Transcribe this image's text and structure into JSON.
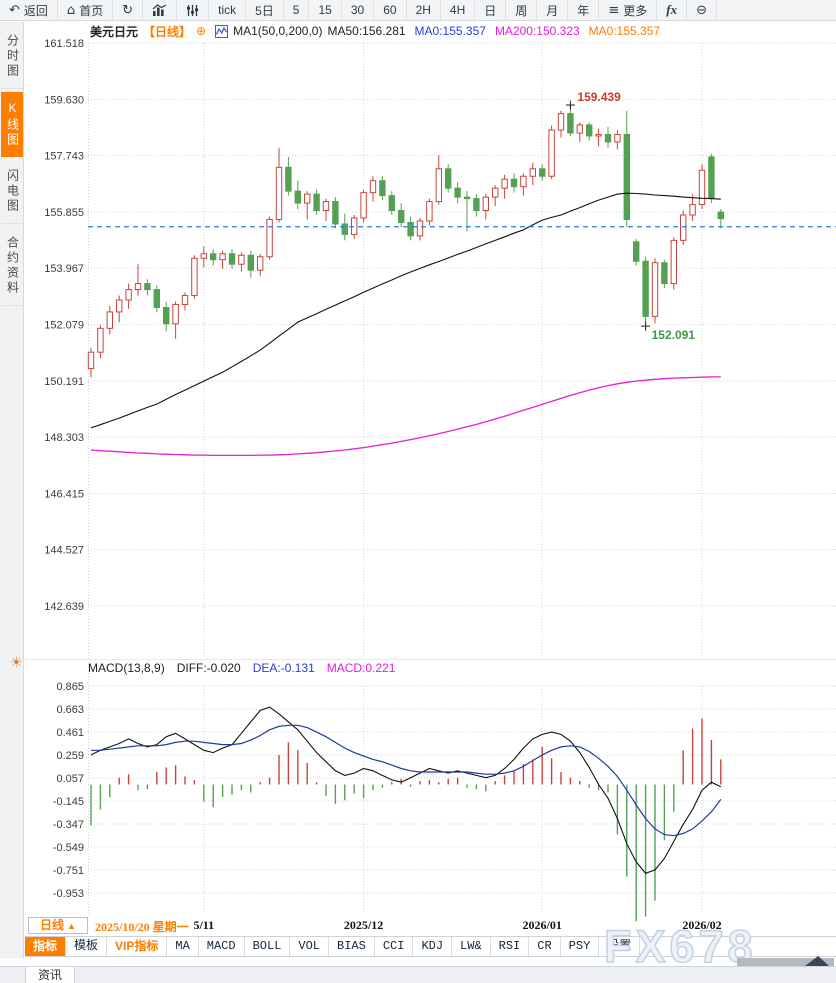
{
  "toolbar": {
    "items": [
      {
        "name": "back-button",
        "label": "返回",
        "icon": "back"
      },
      {
        "name": "home-button",
        "label": "首页",
        "icon": "home"
      },
      {
        "name": "refresh-button",
        "icon": "refresh"
      },
      {
        "name": "chart-style-button",
        "icon": "bar-chart"
      },
      {
        "name": "indicator-params-button",
        "icon": "sliders"
      },
      {
        "name": "period-tick",
        "label": "tick"
      },
      {
        "name": "period-5d",
        "label": "5日"
      },
      {
        "name": "period-5m",
        "label": "5"
      },
      {
        "name": "period-15m",
        "label": "15"
      },
      {
        "name": "period-30m",
        "label": "30"
      },
      {
        "name": "period-60m",
        "label": "60"
      },
      {
        "name": "period-2h",
        "label": "2H"
      },
      {
        "name": "period-4h",
        "label": "4H"
      },
      {
        "name": "period-day",
        "label": "日"
      },
      {
        "name": "period-week",
        "label": "周"
      },
      {
        "name": "period-month",
        "label": "月"
      },
      {
        "name": "period-year",
        "label": "年"
      },
      {
        "name": "more-button",
        "label": "更多",
        "icon": "menu"
      },
      {
        "name": "formula-button",
        "icon": "fx"
      },
      {
        "name": "zoom-out-button",
        "icon": "zoom-out"
      }
    ]
  },
  "sidebar": {
    "tabs": [
      {
        "name": "tab-time-chart",
        "label": "分时图",
        "active": false
      },
      {
        "name": "tab-kline-chart",
        "label": "K线图",
        "active": true
      },
      {
        "name": "tab-lightning-chart",
        "label": "闪电图",
        "active": false
      },
      {
        "name": "tab-contract-info",
        "label": "合约资料",
        "active": false
      }
    ]
  },
  "chart_header": {
    "symbol": "美元日元",
    "period_tag": "【日线】",
    "add_icon": "⊕",
    "ma_params": "MA1(50,0,200,0)",
    "ma50": "MA50:156.281",
    "ma0_blue": "MA0:155.357",
    "ma200": "MA200:150.323",
    "ma0_orange": "MA0:155.357"
  },
  "macd_header": {
    "params": "MACD(13,8,9)",
    "diff": "DIFF:-0.020",
    "dea": "DEA:-0.131",
    "macd": "MACD:0.221"
  },
  "xaxis": {
    "period_label": "日线",
    "arrow": "▲",
    "date_label": "2025/10/20 星期一"
  },
  "indicator_bar": {
    "tabs": [
      {
        "name": "tab-indicators",
        "label": "指标",
        "style": "active"
      },
      {
        "name": "tab-templates",
        "label": "模板",
        "style": ""
      },
      {
        "name": "tab-vip-indicators",
        "label": "VIP指标",
        "style": "vip"
      },
      {
        "name": "btn-ma",
        "label": "MA",
        "style": ""
      },
      {
        "name": "btn-macd",
        "label": "MACD",
        "style": ""
      },
      {
        "name": "btn-boll",
        "label": "BOLL",
        "style": ""
      },
      {
        "name": "btn-vol",
        "label": "VOL",
        "style": ""
      },
      {
        "name": "btn-bias",
        "label": "BIAS",
        "style": ""
      },
      {
        "name": "btn-cci",
        "label": "CCI",
        "style": ""
      },
      {
        "name": "btn-kdj",
        "label": "KDJ",
        "style": ""
      },
      {
        "name": "btn-lw",
        "label": "LW&",
        "style": ""
      },
      {
        "name": "btn-rsi",
        "label": "RSI",
        "style": ""
      },
      {
        "name": "btn-cr",
        "label": "CR",
        "style": ""
      },
      {
        "name": "btn-psy",
        "label": "PSY",
        "style": ""
      },
      {
        "name": "btn-settings",
        "label": "设置",
        "style": ""
      }
    ]
  },
  "bottom": {
    "news_label": "资讯"
  },
  "watermark": {
    "text": "FX678"
  },
  "colors": {
    "up": "#c9443c",
    "down": "#54a154",
    "price_line": "#1f7ee8",
    "ma50": "#111111",
    "ma200": "#e41fd6",
    "diff_line": "#111111",
    "dea_line": "#223a9e",
    "accent": "#ff7e00",
    "blue_text": "#2b3cdd",
    "magenta_text": "#e619e6"
  },
  "chart_data": {
    "type": "candlestick",
    "symbol": "美元日元",
    "period": "日线",
    "y_ticks": [
      "161.518",
      "159.630",
      "157.743",
      "155.855",
      "153.967",
      "152.079",
      "150.191",
      "148.303",
      "146.415",
      "144.527",
      "142.639"
    ],
    "current_price": 155.357,
    "x_ticks": [
      {
        "label": "5/11",
        "index": 12
      },
      {
        "label": "2025/12",
        "index": 29
      },
      {
        "label": "2026/01",
        "index": 48
      },
      {
        "label": "2026/02",
        "index": 65
      }
    ],
    "annotations": {
      "high": {
        "label": "159.439",
        "index": 51
      },
      "low": {
        "label": "152.091",
        "index": 59
      }
    },
    "candles": [
      [
        150.6,
        151.3,
        150.3,
        151.15
      ],
      [
        151.15,
        152.05,
        150.95,
        151.95
      ],
      [
        151.95,
        152.7,
        151.75,
        152.5
      ],
      [
        152.5,
        153.05,
        152.15,
        152.9
      ],
      [
        152.9,
        153.45,
        152.6,
        153.25
      ],
      [
        153.25,
        154.1,
        153.05,
        153.45
      ],
      [
        153.45,
        153.6,
        153.05,
        153.25
      ],
      [
        153.25,
        153.4,
        152.5,
        152.65
      ],
      [
        152.65,
        152.85,
        151.85,
        152.1
      ],
      [
        152.1,
        152.85,
        151.6,
        152.75
      ],
      [
        152.75,
        153.15,
        152.55,
        153.05
      ],
      [
        153.05,
        154.4,
        152.95,
        154.3
      ],
      [
        154.3,
        154.7,
        154.0,
        154.45
      ],
      [
        154.45,
        154.6,
        154.05,
        154.25
      ],
      [
        154.25,
        154.55,
        153.95,
        154.45
      ],
      [
        154.45,
        154.6,
        153.95,
        154.1
      ],
      [
        154.1,
        154.5,
        153.85,
        154.4
      ],
      [
        154.4,
        154.55,
        153.65,
        153.9
      ],
      [
        153.9,
        154.45,
        153.7,
        154.35
      ],
      [
        154.35,
        155.7,
        154.25,
        155.6
      ],
      [
        155.6,
        158.0,
        155.5,
        157.35
      ],
      [
        157.35,
        157.7,
        156.4,
        156.55
      ],
      [
        156.55,
        156.9,
        155.95,
        156.15
      ],
      [
        156.15,
        156.55,
        155.6,
        156.45
      ],
      [
        156.45,
        156.6,
        155.75,
        155.9
      ],
      [
        155.9,
        156.3,
        155.55,
        156.2
      ],
      [
        156.2,
        156.35,
        155.3,
        155.45
      ],
      [
        155.45,
        155.8,
        154.9,
        155.1
      ],
      [
        155.1,
        155.75,
        154.95,
        155.65
      ],
      [
        155.65,
        156.6,
        155.5,
        156.5
      ],
      [
        156.5,
        157.05,
        156.2,
        156.9
      ],
      [
        156.9,
        157.05,
        156.25,
        156.4
      ],
      [
        156.4,
        156.55,
        155.75,
        155.9
      ],
      [
        155.9,
        156.15,
        155.35,
        155.5
      ],
      [
        155.5,
        155.7,
        154.9,
        155.05
      ],
      [
        155.05,
        155.65,
        154.9,
        155.55
      ],
      [
        155.55,
        156.3,
        155.4,
        156.2
      ],
      [
        156.2,
        157.75,
        156.1,
        157.3
      ],
      [
        157.3,
        157.45,
        156.5,
        156.65
      ],
      [
        156.65,
        156.85,
        156.15,
        156.35
      ],
      [
        156.35,
        156.55,
        155.2,
        156.3
      ],
      [
        156.3,
        156.45,
        155.7,
        155.9
      ],
      [
        155.9,
        156.45,
        155.6,
        156.35
      ],
      [
        156.35,
        156.75,
        156.05,
        156.65
      ],
      [
        156.65,
        157.1,
        156.3,
        156.95
      ],
      [
        156.95,
        157.15,
        156.5,
        156.7
      ],
      [
        156.7,
        157.15,
        156.4,
        157.05
      ],
      [
        157.05,
        157.5,
        156.75,
        157.3
      ],
      [
        157.3,
        157.45,
        156.9,
        157.05
      ],
      [
        157.05,
        158.75,
        156.95,
        158.6
      ],
      [
        158.6,
        159.25,
        158.35,
        159.15
      ],
      [
        159.15,
        159.439,
        158.4,
        158.5
      ],
      [
        158.5,
        158.85,
        158.2,
        158.77
      ],
      [
        158.77,
        158.85,
        158.25,
        158.4
      ],
      [
        158.4,
        158.65,
        158.05,
        158.45
      ],
      [
        158.45,
        158.7,
        158.0,
        158.2
      ],
      [
        158.2,
        158.6,
        157.95,
        158.45
      ],
      [
        158.45,
        159.25,
        155.35,
        155.6
      ],
      [
        154.85,
        154.95,
        154.05,
        154.2
      ],
      [
        154.2,
        154.35,
        152.091,
        152.35
      ],
      [
        152.35,
        154.3,
        152.12,
        154.15
      ],
      [
        154.15,
        154.25,
        153.3,
        153.45
      ],
      [
        153.45,
        155.0,
        153.25,
        154.9
      ],
      [
        154.9,
        155.9,
        154.75,
        155.75
      ],
      [
        155.75,
        156.45,
        155.55,
        156.1
      ],
      [
        156.1,
        157.45,
        155.95,
        157.25
      ],
      [
        157.7,
        157.8,
        156.15,
        156.3
      ],
      [
        155.85,
        155.95,
        155.3,
        155.63
      ]
    ],
    "ma50": [
      148.61,
      148.72,
      148.83,
      148.94,
      149.06,
      149.18,
      149.3,
      149.41,
      149.57,
      149.73,
      149.88,
      150.03,
      150.18,
      150.33,
      150.48,
      150.66,
      150.84,
      151.03,
      151.22,
      151.45,
      151.69,
      151.92,
      152.16,
      152.3,
      152.44,
      152.59,
      152.73,
      152.87,
      153.01,
      153.16,
      153.3,
      153.44,
      153.57,
      153.71,
      153.84,
      153.96,
      154.08,
      154.19,
      154.31,
      154.43,
      154.54,
      154.66,
      154.78,
      154.9,
      155.02,
      155.14,
      155.25,
      155.42,
      155.58,
      155.67,
      155.75,
      155.88,
      156.0,
      156.13,
      156.25,
      156.35,
      156.45,
      156.48,
      156.47,
      156.45,
      156.42,
      156.4,
      156.38,
      156.35,
      156.33,
      156.31,
      156.3,
      156.281
    ],
    "ma200": [
      147.87,
      147.85,
      147.83,
      147.81,
      147.79,
      147.77,
      147.76,
      147.74,
      147.73,
      147.72,
      147.71,
      147.7,
      147.7,
      147.69,
      147.69,
      147.69,
      147.69,
      147.69,
      147.7,
      147.7,
      147.71,
      147.72,
      147.74,
      147.76,
      147.78,
      147.81,
      147.84,
      147.87,
      147.91,
      147.95,
      148.0,
      148.05,
      148.1,
      148.16,
      148.22,
      148.28,
      148.35,
      148.42,
      148.49,
      148.57,
      148.65,
      148.73,
      148.82,
      148.91,
      149.0,
      149.1,
      149.2,
      149.3,
      149.4,
      149.5,
      149.6,
      149.7,
      149.79,
      149.88,
      149.96,
      150.03,
      150.09,
      150.14,
      150.18,
      150.21,
      150.24,
      150.26,
      150.28,
      150.29,
      150.3,
      150.31,
      150.32,
      150.323
    ],
    "macd": {
      "y_ticks": [
        "0.865",
        "0.663",
        "0.461",
        "0.259",
        "0.057",
        "-0.145",
        "-0.347",
        "-0.549",
        "-0.751",
        "-0.953"
      ],
      "hist": [
        -0.36,
        -0.22,
        -0.11,
        0.06,
        0.09,
        -0.05,
        -0.04,
        0.11,
        0.15,
        0.17,
        0.07,
        0.04,
        -0.15,
        -0.2,
        -0.11,
        -0.09,
        -0.05,
        -0.07,
        0.02,
        0.06,
        0.26,
        0.37,
        0.3,
        0.19,
        0.02,
        -0.1,
        -0.17,
        -0.14,
        -0.08,
        -0.12,
        -0.05,
        -0.03,
        0.02,
        0.05,
        -0.02,
        0.03,
        0.04,
        0.02,
        0.05,
        0.06,
        -0.03,
        -0.04,
        -0.06,
        0.03,
        0.08,
        0.12,
        0.18,
        0.22,
        0.33,
        0.23,
        0.11,
        0.06,
        0.03,
        -0.03,
        -0.05,
        -0.07,
        -0.44,
        -0.81,
        -1.2,
        -1.16,
        -1.02,
        -0.49,
        -0.24,
        0.3,
        0.49,
        0.58,
        0.39,
        0.221
      ],
      "diff_line": [
        0.26,
        0.3,
        0.33,
        0.36,
        0.4,
        0.36,
        0.33,
        0.35,
        0.42,
        0.45,
        0.4,
        0.35,
        0.3,
        0.28,
        0.32,
        0.35,
        0.45,
        0.55,
        0.65,
        0.68,
        0.62,
        0.55,
        0.48,
        0.38,
        0.28,
        0.2,
        0.12,
        0.08,
        0.1,
        0.14,
        0.12,
        0.08,
        0.04,
        0.02,
        0.06,
        0.1,
        0.14,
        0.12,
        0.1,
        0.12,
        0.1,
        0.08,
        0.06,
        0.08,
        0.14,
        0.22,
        0.32,
        0.4,
        0.44,
        0.46,
        0.44,
        0.38,
        0.28,
        0.15,
        0.0,
        -0.12,
        -0.3,
        -0.52,
        -0.68,
        -0.78,
        -0.75,
        -0.65,
        -0.5,
        -0.35,
        -0.22,
        -0.05,
        0.02,
        -0.02
      ],
      "dea_line": [
        0.3,
        0.3,
        0.31,
        0.32,
        0.33,
        0.34,
        0.34,
        0.34,
        0.35,
        0.37,
        0.38,
        0.38,
        0.37,
        0.36,
        0.35,
        0.35,
        0.36,
        0.39,
        0.43,
        0.48,
        0.51,
        0.52,
        0.52,
        0.5,
        0.46,
        0.42,
        0.37,
        0.32,
        0.28,
        0.25,
        0.22,
        0.2,
        0.17,
        0.14,
        0.12,
        0.11,
        0.11,
        0.11,
        0.11,
        0.11,
        0.11,
        0.1,
        0.09,
        0.09,
        0.1,
        0.12,
        0.16,
        0.21,
        0.26,
        0.3,
        0.33,
        0.34,
        0.33,
        0.29,
        0.23,
        0.16,
        0.07,
        -0.05,
        -0.18,
        -0.3,
        -0.39,
        -0.44,
        -0.45,
        -0.43,
        -0.39,
        -0.32,
        -0.24,
        -0.131
      ]
    }
  }
}
